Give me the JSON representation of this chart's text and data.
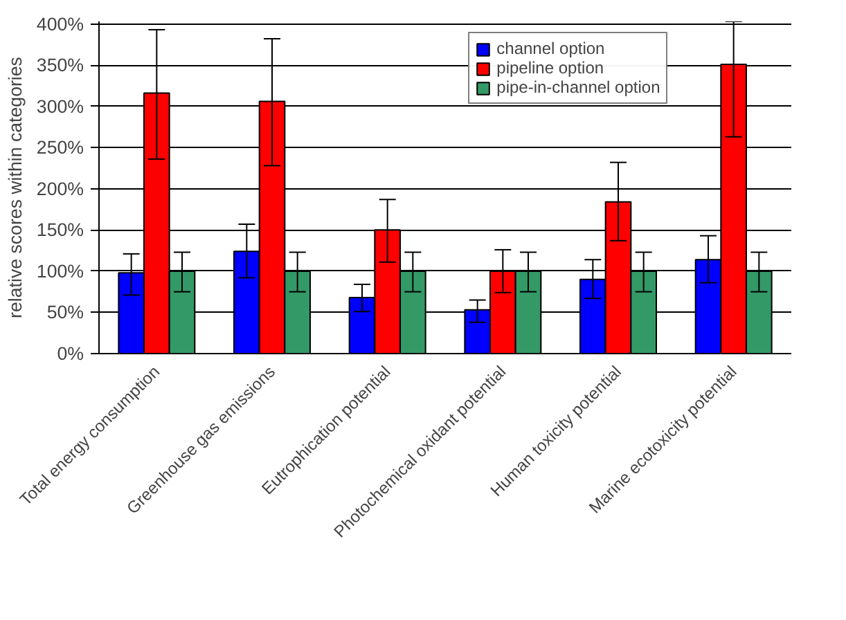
{
  "chart_data": {
    "type": "bar",
    "ylabel": "relative scores within categories",
    "categories": [
      "Total energy consumption",
      "Greenhouse gas emissions",
      "Eutrophication potential",
      "Photochemical oxidant potential",
      "Human toxicity potential",
      "Marine ecotoxicity potential"
    ],
    "series": [
      {
        "name": "channel option",
        "color": "#0000ff",
        "values": [
          98,
          124,
          68,
          53,
          90,
          114
        ],
        "errors": [
          [
            71,
            121
          ],
          [
            92,
            157
          ],
          [
            51,
            84
          ],
          [
            38,
            65
          ],
          [
            67,
            114
          ],
          [
            86,
            143
          ]
        ]
      },
      {
        "name": "pipeline option",
        "color": "#ff0000",
        "values": [
          316,
          306,
          150,
          100,
          184,
          351
        ],
        "errors": [
          [
            236,
            393
          ],
          [
            228,
            382
          ],
          [
            111,
            187
          ],
          [
            74,
            126
          ],
          [
            137,
            232
          ],
          [
            263,
            403
          ]
        ]
      },
      {
        "name": "pipe-in-channel option",
        "color": "#339966",
        "values": [
          100,
          100,
          100,
          100,
          100,
          100
        ],
        "errors": [
          [
            75,
            123
          ],
          [
            75,
            123
          ],
          [
            75,
            123
          ],
          [
            75,
            123
          ],
          [
            75,
            123
          ],
          [
            75,
            123
          ]
        ]
      }
    ],
    "ylim": [
      0,
      403
    ],
    "yticks": [
      {
        "value": 0,
        "label": "0%"
      },
      {
        "value": 50,
        "label": "50%"
      },
      {
        "value": 100,
        "label": "100%"
      },
      {
        "value": 150,
        "label": "150%"
      },
      {
        "value": 200,
        "label": "200%"
      },
      {
        "value": 250,
        "label": "250%"
      },
      {
        "value": 300,
        "label": "300%"
      },
      {
        "value": 350,
        "label": "350%"
      },
      {
        "value": 400,
        "label": "400%"
      }
    ],
    "grid": "y",
    "legend": "top right"
  }
}
